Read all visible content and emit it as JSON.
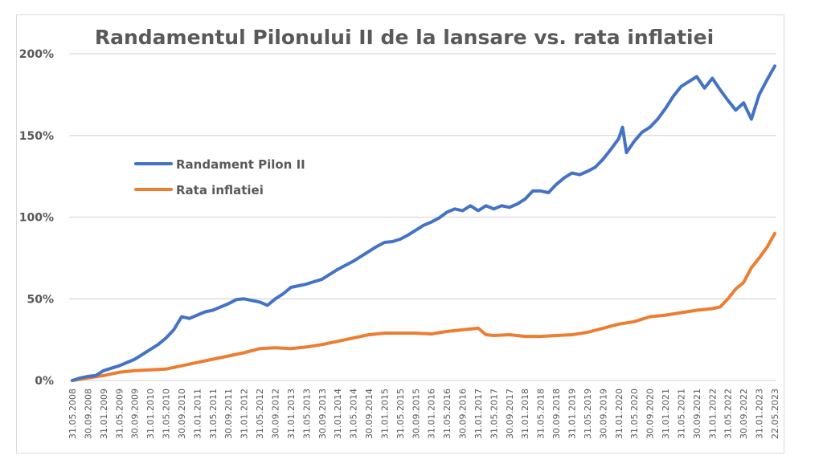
{
  "chart_data": {
    "type": "line",
    "title": "Randamentul Pilonului II de la lansare vs. rata inflatiei",
    "xlabel": "",
    "ylabel": "",
    "ylim": [
      0,
      200
    ],
    "y_ticks": [
      "0%",
      "50%",
      "100%",
      "150%",
      "200%"
    ],
    "y_tick_values": [
      0,
      50,
      100,
      150,
      200
    ],
    "grid": true,
    "legend_position": "upper-left",
    "x_unit": "months since 31.05.2008",
    "x_range": [
      0,
      180
    ],
    "x_tick_labels": [
      "31.05.2008",
      "30.09.2008",
      "31.01.2009",
      "31.05.2009",
      "30.09.2009",
      "31.01.2010",
      "31.05.2010",
      "30.09.2010",
      "31.01.2011",
      "31.05.2011",
      "30.09.2011",
      "31.01.2012",
      "31.05.2012",
      "30.09.2012",
      "31.01.2013",
      "31.05.2013",
      "30.09.2013",
      "31.01.2014",
      "31.05.2014",
      "30.09.2014",
      "31.01.2015",
      "31.05.2015",
      "30.09.2015",
      "31.01.2016",
      "31.05.2016",
      "30.09.2016",
      "31.01.2017",
      "31.05.2017",
      "30.09.2017",
      "31.01.2018",
      "31.05.2018",
      "30.09.2018",
      "31.01.2019",
      "31.05.2019",
      "30.09.2019",
      "31.01.2020",
      "31.05.2020",
      "30.09.2020",
      "31.01.2021",
      "31.05.2021",
      "30.09.2021",
      "31.01.2022",
      "31.05.2022",
      "30.09.2022",
      "31.01.2023",
      "22.05.2023"
    ],
    "x_tick_values": [
      0,
      4,
      8,
      12,
      16,
      20,
      24,
      28,
      32,
      36,
      40,
      44,
      48,
      52,
      56,
      60,
      64,
      68,
      72,
      76,
      80,
      84,
      88,
      92,
      96,
      100,
      104,
      108,
      112,
      116,
      120,
      124,
      128,
      132,
      136,
      140,
      144,
      148,
      152,
      156,
      160,
      164,
      168,
      172,
      176,
      180
    ],
    "series": [
      {
        "name": "Randament Pilon II",
        "color": "#4472C4",
        "x": [
          0,
          2,
          4,
          6,
          8,
          10,
          12,
          14,
          16,
          18,
          20,
          22,
          24,
          26,
          28,
          30,
          32,
          34,
          36,
          38,
          40,
          42,
          44,
          46,
          48,
          50,
          52,
          54,
          56,
          58,
          60,
          62,
          64,
          66,
          68,
          70,
          72,
          74,
          76,
          78,
          80,
          82,
          84,
          86,
          88,
          90,
          92,
          94,
          96,
          98,
          100,
          102,
          104,
          106,
          108,
          110,
          112,
          114,
          116,
          118,
          120,
          122,
          124,
          126,
          128,
          130,
          132,
          134,
          136,
          138,
          140,
          141,
          142,
          144,
          146,
          148,
          150,
          152,
          154,
          156,
          158,
          160,
          162,
          164,
          166,
          168,
          170,
          172,
          174,
          176,
          178,
          180
        ],
        "values": [
          0,
          1.5,
          2.5,
          3,
          6,
          7.5,
          9,
          11,
          13,
          16,
          19,
          22,
          26,
          31,
          39,
          38,
          40,
          42,
          43,
          45,
          47,
          49.5,
          50,
          49,
          48,
          46,
          50,
          53,
          57,
          58,
          59,
          60.5,
          62,
          65,
          68,
          70.5,
          73,
          76,
          79,
          82,
          84.5,
          85,
          86.5,
          89,
          92,
          95,
          97,
          99.5,
          103,
          105,
          104,
          107,
          104,
          107,
          105,
          107,
          106,
          108,
          111,
          116,
          116,
          115,
          120,
          124,
          127,
          126,
          128,
          130.5,
          135.5,
          141.5,
          148,
          155,
          139.5,
          146.5,
          152,
          155,
          160,
          166.5,
          174,
          180,
          183,
          186,
          179,
          185,
          178,
          171.5,
          165.5,
          170,
          160,
          175,
          184,
          192.5
        ]
      },
      {
        "name": "Rata inflatiei",
        "color": "#ED7D31",
        "x": [
          0,
          4,
          8,
          12,
          16,
          20,
          24,
          28,
          32,
          36,
          40,
          44,
          48,
          52,
          56,
          60,
          64,
          68,
          72,
          76,
          80,
          84,
          88,
          92,
          96,
          100,
          104,
          106,
          108,
          112,
          116,
          120,
          124,
          128,
          132,
          136,
          140,
          144,
          148,
          152,
          156,
          160,
          164,
          166,
          168,
          170,
          172,
          174,
          176,
          178,
          180
        ],
        "values": [
          0,
          1.5,
          3,
          5,
          6,
          6.5,
          7,
          9,
          11,
          13,
          15,
          17,
          19.5,
          20,
          19.5,
          20.5,
          22,
          24,
          26,
          28,
          29,
          29,
          29,
          28.5,
          30,
          31,
          32,
          28,
          27.5,
          28,
          27,
          27,
          27.5,
          28,
          29.5,
          32,
          34.5,
          36,
          39,
          40,
          41.5,
          43,
          44,
          45,
          50,
          56,
          60,
          69,
          75,
          81.5,
          90
        ]
      }
    ]
  }
}
